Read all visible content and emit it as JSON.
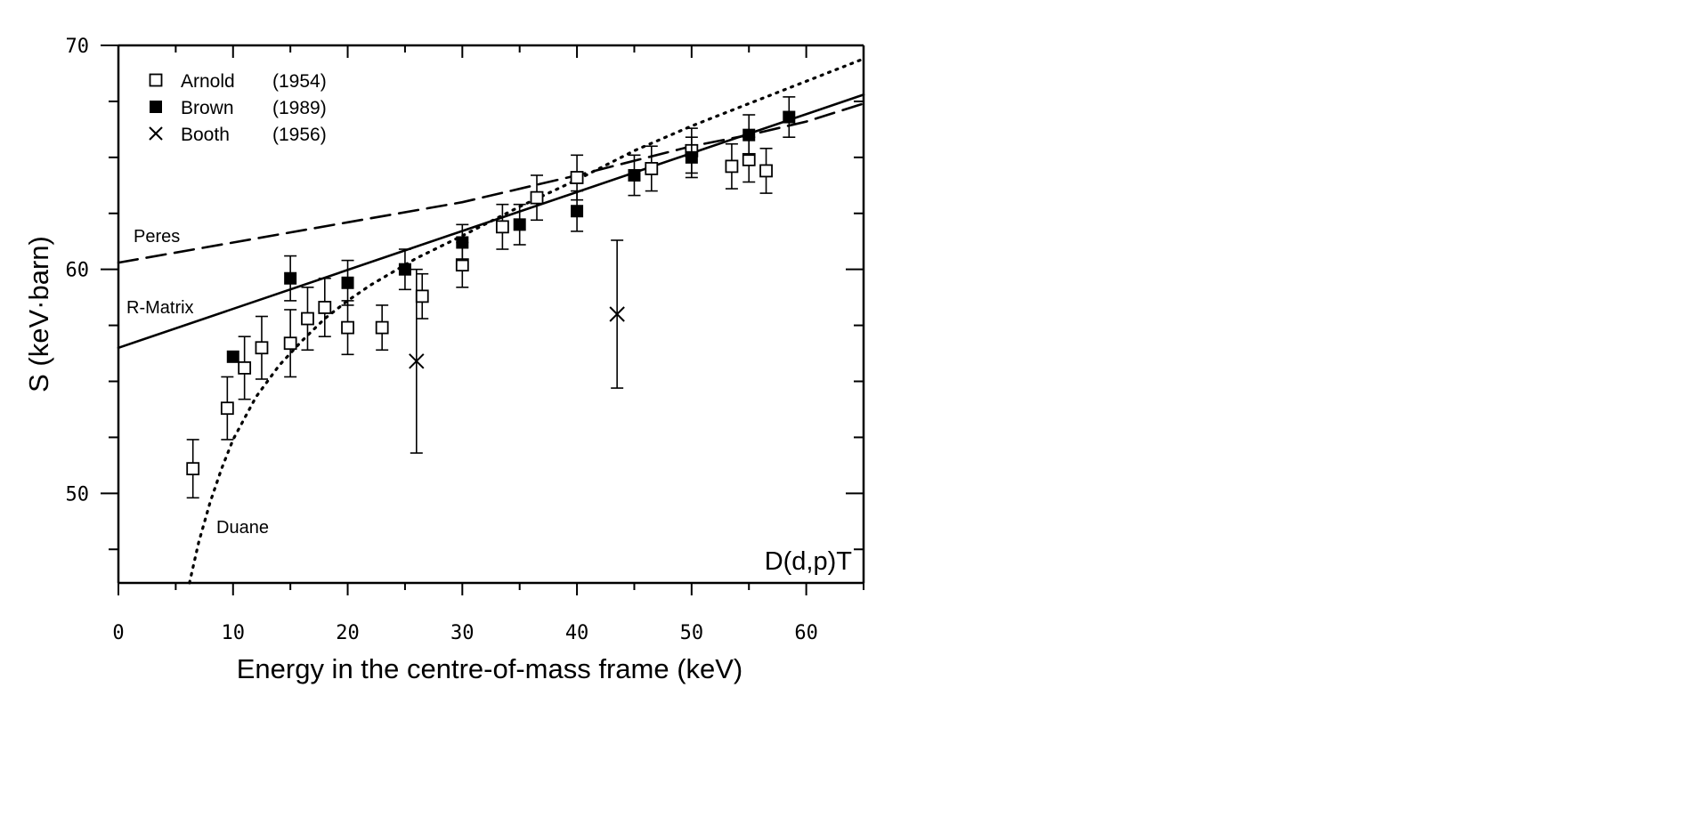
{
  "chart_data": {
    "type": "scatter",
    "title": "",
    "xlabel": "Energy in the centre-of-mass frame (keV)",
    "ylabel": "S  (keV·barn)",
    "xlim": [
      0,
      65
    ],
    "ylim": [
      46,
      70
    ],
    "x_ticks": [
      "0",
      "10",
      "20",
      "30",
      "40",
      "50",
      "60"
    ],
    "y_ticks": [
      "50",
      "60",
      "70"
    ],
    "grid": false,
    "legend_position": "top-left",
    "annotation": "D(d,p)T",
    "series": [
      {
        "name": "Arnold",
        "year": "(1954)",
        "marker": "open-square",
        "points": [
          {
            "x": 6.5,
            "y": 51.1,
            "err": 1.3
          },
          {
            "x": 9.5,
            "y": 53.8,
            "err": 1.4
          },
          {
            "x": 11,
            "y": 55.6,
            "err": 1.4
          },
          {
            "x": 12.5,
            "y": 56.5,
            "err": 1.4
          },
          {
            "x": 15,
            "y": 56.7,
            "err": 1.5
          },
          {
            "x": 16.5,
            "y": 57.8,
            "err": 1.4
          },
          {
            "x": 18,
            "y": 58.3,
            "err": 1.3
          },
          {
            "x": 20,
            "y": 57.4,
            "err": 1.2
          },
          {
            "x": 23,
            "y": 57.4,
            "err": 1.0
          },
          {
            "x": 26.5,
            "y": 58.8,
            "err": 1.0
          },
          {
            "x": 30,
            "y": 60.2,
            "err": 1.0
          },
          {
            "x": 33.5,
            "y": 61.9,
            "err": 1.0
          },
          {
            "x": 36.5,
            "y": 63.2,
            "err": 1.0
          },
          {
            "x": 40,
            "y": 64.1,
            "err": 1.0
          },
          {
            "x": 46.5,
            "y": 64.5,
            "err": 1.0
          },
          {
            "x": 50,
            "y": 65.3,
            "err": 1.0
          },
          {
            "x": 53.5,
            "y": 64.6,
            "err": 1.0
          },
          {
            "x": 55,
            "y": 64.9,
            "err": 1.0
          },
          {
            "x": 56.5,
            "y": 64.4,
            "err": 1.0
          }
        ]
      },
      {
        "name": "Brown",
        "year": "(1989)",
        "marker": "filled-square",
        "points": [
          {
            "x": 10,
            "y": 56.1,
            "err": 0
          },
          {
            "x": 15,
            "y": 59.6,
            "err": 1.0
          },
          {
            "x": 20,
            "y": 59.4,
            "err": 1.0
          },
          {
            "x": 25,
            "y": 60.0,
            "err": 0.9
          },
          {
            "x": 30,
            "y": 61.2,
            "err": 0.8
          },
          {
            "x": 35,
            "y": 62.0,
            "err": 0.9
          },
          {
            "x": 40,
            "y": 62.6,
            "err": 0.9
          },
          {
            "x": 45,
            "y": 64.2,
            "err": 0.9
          },
          {
            "x": 50,
            "y": 65.0,
            "err": 0.9
          },
          {
            "x": 55,
            "y": 66.0,
            "err": 0.9
          },
          {
            "x": 58.5,
            "y": 66.8,
            "err": 0.9
          }
        ]
      },
      {
        "name": "Booth",
        "year": "(1956)",
        "marker": "cross",
        "points": [
          {
            "x": 26,
            "y": 55.9,
            "err": 4.1
          },
          {
            "x": 43.5,
            "y": 58.0,
            "err": 3.3
          }
        ]
      }
    ],
    "curves": [
      {
        "name": "Peres",
        "style": "dashed",
        "x": [
          0,
          10,
          20,
          30,
          40,
          50,
          55,
          60,
          65
        ],
        "y": [
          60.3,
          61.2,
          62.1,
          63.0,
          64.2,
          65.5,
          66.0,
          66.6,
          67.4
        ]
      },
      {
        "name": "R-Matrix",
        "style": "solid",
        "x": [
          0,
          65
        ],
        "y": [
          56.5,
          67.8
        ]
      },
      {
        "name": "Duane",
        "style": "dotted",
        "x": [
          6.2,
          7,
          8,
          9,
          10,
          12,
          14,
          16,
          18,
          20,
          22,
          24,
          26,
          28,
          30,
          35,
          40,
          45,
          50,
          55,
          60,
          65
        ],
        "y": [
          46.0,
          47.8,
          49.6,
          51.1,
          52.4,
          54.3,
          55.7,
          56.8,
          57.8,
          58.6,
          59.3,
          59.9,
          60.5,
          61.0,
          61.5,
          62.8,
          64.0,
          65.3,
          66.4,
          67.4,
          68.4,
          69.4
        ]
      }
    ]
  }
}
